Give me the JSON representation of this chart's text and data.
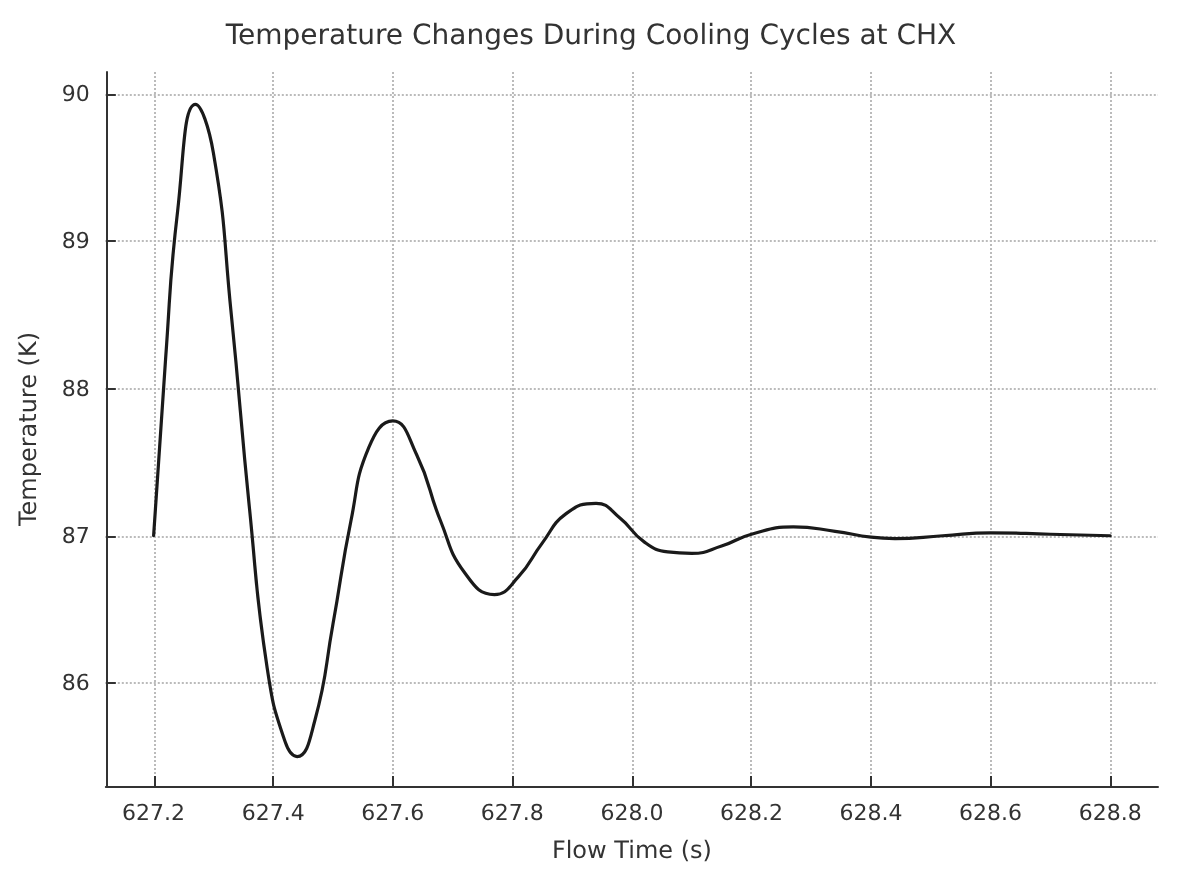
{
  "chart_data": {
    "type": "line",
    "title": "Temperature Changes During Cooling Cycles at CHX",
    "xlabel": "Flow Time (s)",
    "ylabel": "Temperature (K)",
    "xlim": [
      627.12,
      628.88
    ],
    "ylim": [
      85.3,
      90.15
    ],
    "xticks": [
      627.2,
      627.4,
      627.6,
      627.8,
      {
        "value": 628,
        "label": "628.0"
      },
      628.2,
      628.4,
      628.6,
      628.8
    ],
    "yticks": [
      86,
      87,
      88,
      89,
      90
    ],
    "grid": true,
    "marker": "none",
    "line_style": "solid",
    "series": [
      {
        "color": "#1a1a1a",
        "x": [
          627.2,
          627.22,
          627.24,
          627.27,
          627.3,
          627.33,
          627.36,
          627.39,
          627.42,
          627.44,
          627.47,
          627.5,
          627.53,
          627.56,
          627.6,
          627.64,
          627.68,
          627.72,
          627.77,
          627.81,
          627.85,
          627.89,
          627.94,
          627.98,
          628.02,
          628.06,
          628.1,
          628.15,
          628.2,
          628.27,
          628.34,
          628.4,
          628.44,
          628.52,
          628.6,
          628.7,
          628.8
        ],
        "values": [
          87.0,
          88.2,
          89.2,
          89.93,
          89.6,
          88.5,
          87.2,
          86.1,
          85.6,
          85.5,
          85.75,
          86.4,
          87.1,
          87.6,
          87.78,
          87.55,
          87.1,
          86.75,
          86.6,
          86.72,
          86.95,
          87.15,
          87.22,
          87.12,
          86.96,
          86.89,
          86.88,
          86.93,
          87.01,
          87.06,
          87.03,
          86.99,
          86.98,
          87.0,
          87.02,
          87.01,
          87.0
        ]
      }
    ]
  }
}
